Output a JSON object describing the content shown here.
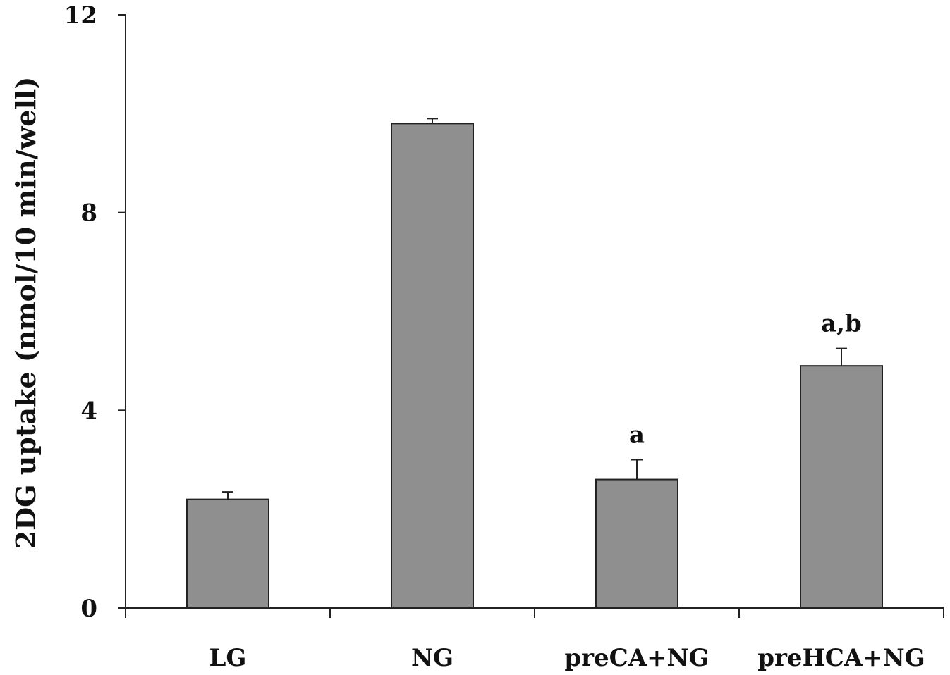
{
  "chart_data": {
    "type": "bar",
    "title": "",
    "xlabel": "",
    "ylabel": "2DG uptake (nmol/10 min/well)",
    "categories": [
      "LG",
      "NG",
      "preCA+NG",
      "preHCA+NG"
    ],
    "values": [
      2.2,
      9.8,
      2.6,
      4.9
    ],
    "errors": [
      0.15,
      0.1,
      0.4,
      0.35
    ],
    "annotations": [
      "",
      "",
      "a",
      "a,b"
    ],
    "ylim": [
      0,
      12
    ],
    "yticks": [
      0,
      4,
      8,
      12
    ],
    "ytick_labels": [
      "0",
      "4",
      "8",
      "12"
    ],
    "grid": false,
    "legend": "none",
    "bar_color": "#8f8f8f",
    "bar_edge_color": "#222222",
    "axis_color": "#222222"
  }
}
